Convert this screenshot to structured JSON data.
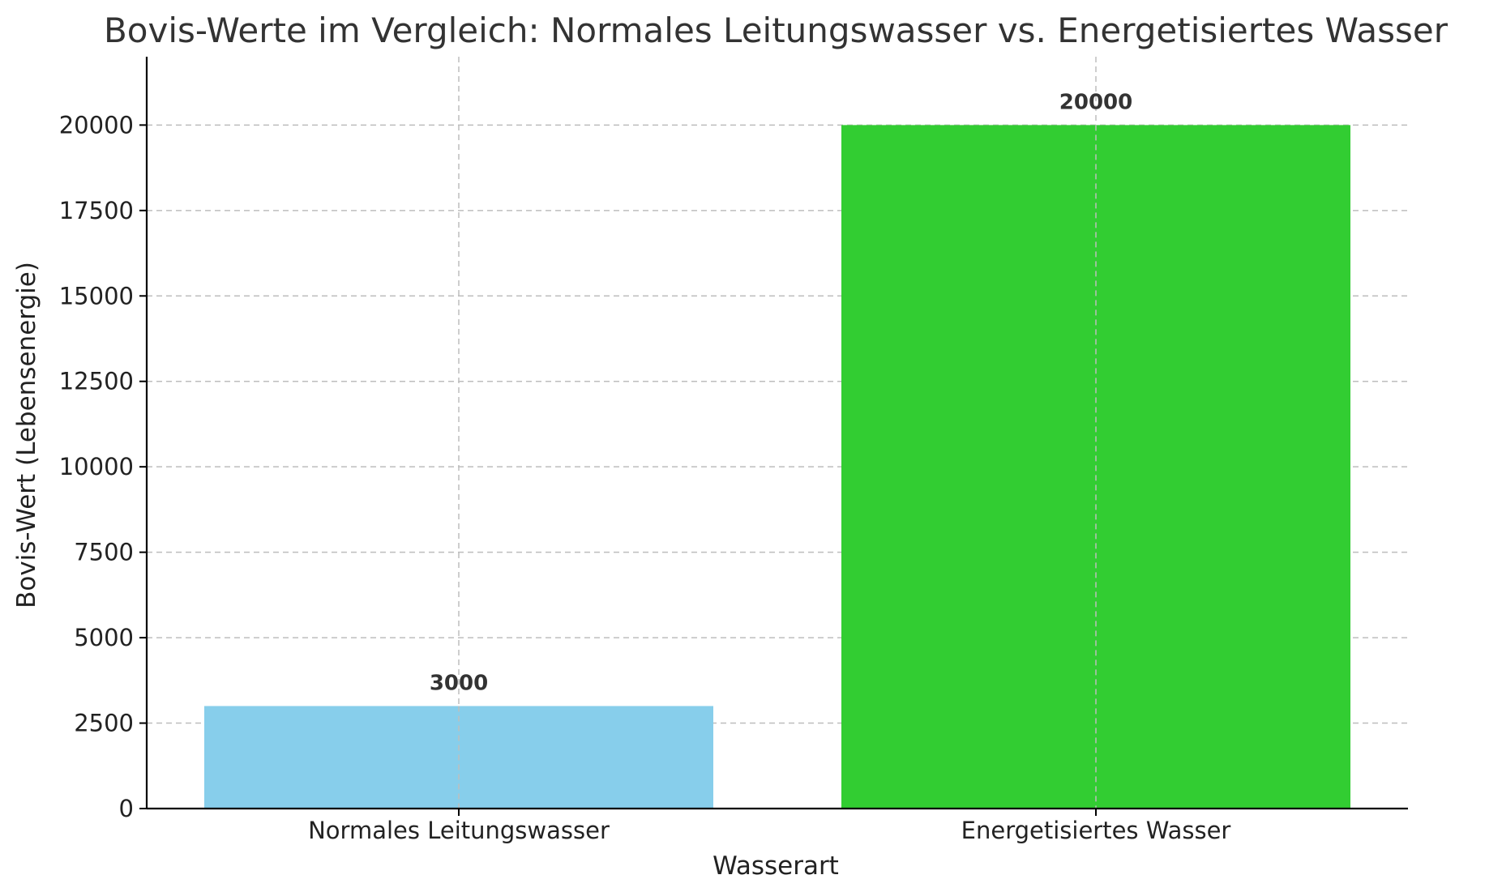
{
  "chart_data": {
    "type": "bar",
    "title": "Bovis-Werte im Vergleich: Normales Leitungswasser vs. Energetisiertes Wasser",
    "xlabel": "Wasserart",
    "ylabel": "Bovis-Wert (Lebensenergie)",
    "categories": [
      "Normales Leitungswasser",
      "Energetisiertes Wasser"
    ],
    "values": [
      3000,
      20000
    ],
    "data_labels": [
      "3000",
      "20000"
    ],
    "bar_colors": [
      "#87CEEB",
      "#32CD32"
    ],
    "ylim": [
      0,
      22000
    ],
    "yticks": [
      0,
      2500,
      5000,
      7500,
      10000,
      12500,
      15000,
      17500,
      20000
    ],
    "ytick_labels": [
      "0",
      "2500",
      "5000",
      "7500",
      "10000",
      "12500",
      "15000",
      "17500",
      "20000"
    ],
    "grid": true,
    "legend": "none"
  }
}
